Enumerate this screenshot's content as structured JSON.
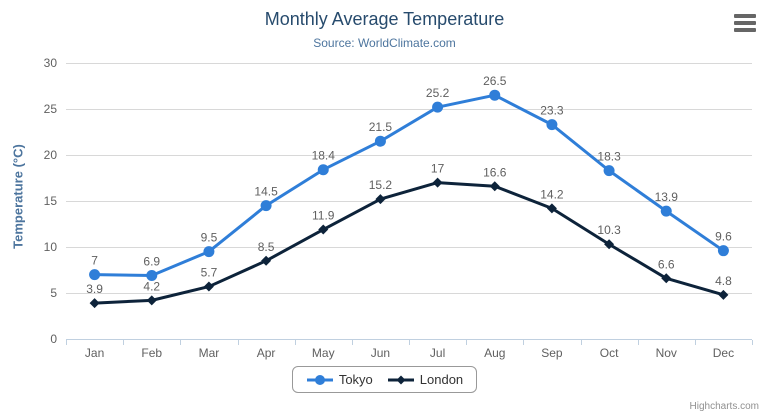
{
  "header": {
    "title": "Monthly Average Temperature",
    "subtitle": "Source: WorldClimate.com"
  },
  "chart_data": {
    "type": "line",
    "title": "Monthly Average Temperature",
    "subtitle": "Source: WorldClimate.com",
    "categories": [
      "Jan",
      "Feb",
      "Mar",
      "Apr",
      "May",
      "Jun",
      "Jul",
      "Aug",
      "Sep",
      "Oct",
      "Nov",
      "Dec"
    ],
    "series": [
      {
        "name": "Tokyo",
        "color": "#2f7ed8",
        "marker": "circle",
        "values": [
          7,
          6.9,
          9.5,
          14.5,
          18.4,
          21.5,
          25.2,
          26.5,
          23.3,
          18.3,
          13.9,
          9.6
        ]
      },
      {
        "name": "London",
        "color": "#0d233a",
        "marker": "diamond",
        "values": [
          3.9,
          4.2,
          5.7,
          8.5,
          11.9,
          15.2,
          17,
          16.6,
          14.2,
          10.3,
          6.6,
          4.8
        ]
      }
    ],
    "xlabel": "",
    "ylabel": "Temperature (°C)",
    "ylim": [
      0,
      30
    ],
    "ytick_step": 5,
    "grid": true,
    "legend_position": "bottom-center",
    "data_labels": true,
    "colors": {
      "title": "#274b6d",
      "subtitle": "#4d759e",
      "axis_line": "#c0d0e0",
      "gridline": "#d8d8d8",
      "tick_label": "#606060",
      "data_label": "#606060"
    }
  },
  "credits": {
    "label": "Highcharts.com"
  }
}
